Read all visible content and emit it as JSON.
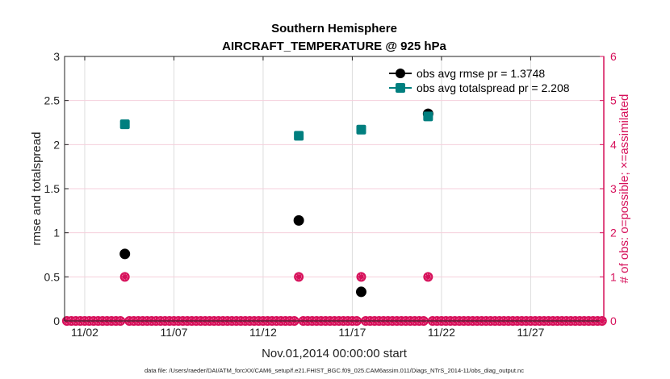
{
  "chart_data": {
    "type": "line",
    "title": "Southern Hemisphere",
    "subtitle": "AIRCRAFT_TEMPERATURE @ 925 hPa",
    "xlabel": "Nov.01,2014 00:00:00 start",
    "ylabel": "rmse and totalspread",
    "y2label": "# of obs: o=possible; ×=assimilated",
    "footnote": "data file: /Users/raeder/DAI/ATM_forcXX/CAM6_setup/f.e21.FHIST_BGC.f09_025.CAM6assim.011/Diags_NTrS_2014-11/obs_diag_output.nc",
    "x_unit": "day of Nov 2014",
    "xlim": [
      0.87,
      31.1
    ],
    "ylim": [
      0,
      3
    ],
    "y2lim": [
      0,
      6
    ],
    "xticks": [
      {
        "v": 2,
        "label": "11/02"
      },
      {
        "v": 7,
        "label": "11/07"
      },
      {
        "v": 12,
        "label": "11/12"
      },
      {
        "v": 17,
        "label": "11/17"
      },
      {
        "v": 22,
        "label": "11/22"
      },
      {
        "v": 27,
        "label": "11/27"
      }
    ],
    "yticks": [
      {
        "v": 0,
        "label": "0"
      },
      {
        "v": 0.5,
        "label": "0.5"
      },
      {
        "v": 1,
        "label": "1"
      },
      {
        "v": 1.5,
        "label": "1.5"
      },
      {
        "v": 2,
        "label": "2"
      },
      {
        "v": 2.5,
        "label": "2.5"
      },
      {
        "v": 3,
        "label": "3"
      }
    ],
    "y2ticks": [
      {
        "v": 0,
        "label": "0"
      },
      {
        "v": 1,
        "label": "1"
      },
      {
        "v": 2,
        "label": "2"
      },
      {
        "v": 3,
        "label": "3"
      },
      {
        "v": 4,
        "label": "4"
      },
      {
        "v": 5,
        "label": "5"
      },
      {
        "v": 6,
        "label": "6"
      }
    ],
    "legend_position": "top-right",
    "series": [
      {
        "name": "obs avg rmse pr = 1.3748",
        "color": "#000000",
        "marker": "circle",
        "x": [
          4.25,
          14.0,
          17.5,
          21.25
        ],
        "y": [
          0.76,
          1.14,
          0.33,
          2.35
        ]
      },
      {
        "name": "obs avg totalspread pr = 2.208",
        "color": "#007f7f",
        "marker": "square",
        "x": [
          4.25,
          14.0,
          17.5,
          21.25
        ],
        "y": [
          2.23,
          2.1,
          2.17,
          2.32
        ]
      }
    ],
    "obs_counts": {
      "color": "#d6105a",
      "bin_start": 1.0,
      "bin_end": 31.0,
      "bin_step": 0.25,
      "nonzero": [
        {
          "x": 4.25,
          "possible": 1,
          "assimilated": 1
        },
        {
          "x": 14.0,
          "possible": 1,
          "assimilated": 1
        },
        {
          "x": 17.5,
          "possible": 1,
          "assimilated": 1
        },
        {
          "x": 21.25,
          "possible": 1,
          "assimilated": 1
        }
      ]
    }
  }
}
